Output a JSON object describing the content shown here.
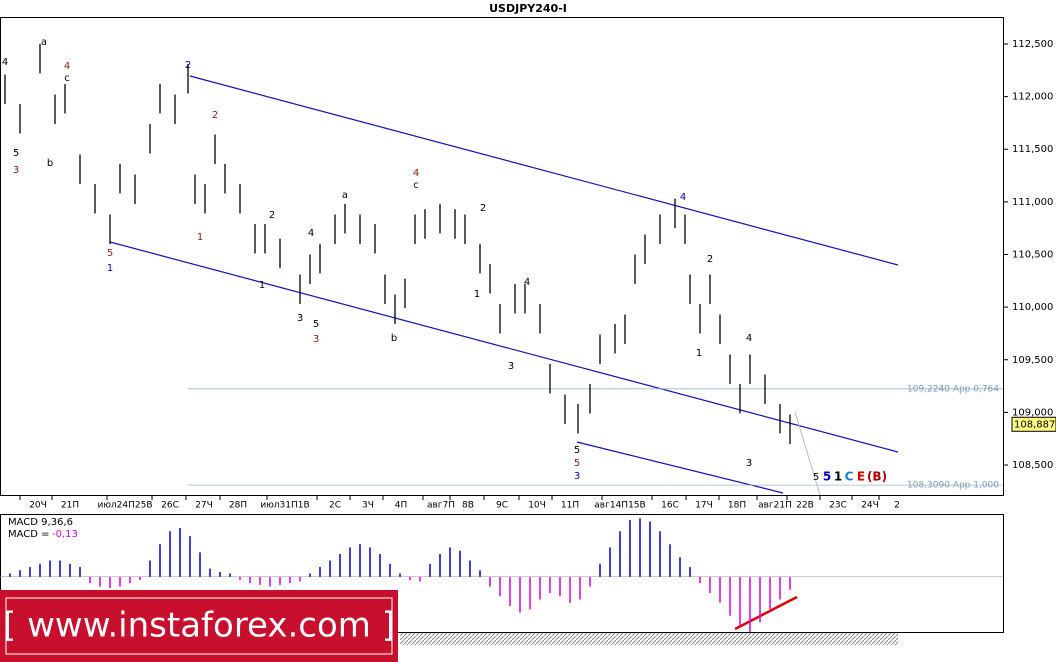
{
  "chart_data": {
    "type": "ohlc",
    "title": "USDJPY240-I",
    "ylim": [
      108.215,
      112.747
    ],
    "yticks": [
      {
        "value": 108.5,
        "label": "108,500"
      },
      {
        "value": 109,
        "label": "109,000"
      },
      {
        "value": 109.5,
        "label": "109,500"
      },
      {
        "value": 110,
        "label": "110,000"
      },
      {
        "value": 110.5,
        "label": "110,500"
      },
      {
        "value": 111,
        "label": "111,000"
      },
      {
        "value": 111.5,
        "label": "111,500"
      },
      {
        "value": 112,
        "label": "112,000"
      },
      {
        "value": 112.5,
        "label": "112,500"
      }
    ],
    "categories": [
      "20Ч",
      "21П",
      "июл24П25В",
      "26С",
      "27Ч",
      "28П",
      "июл31П1В",
      "2С",
      "3Ч",
      "4П",
      "авг7П",
      "8В",
      "9С",
      "10Ч",
      "11П",
      "авг14П15В",
      "16С",
      "17Ч",
      "18П",
      "авг21П",
      "22В",
      "23С",
      "24Ч",
      "2"
    ],
    "high": [
      112.21,
      111.93,
      112.5,
      112.02,
      112.12,
      111.45,
      111.17,
      110.88,
      111.36,
      111.26,
      111.74,
      112.12,
      112.02,
      112.31,
      111.26,
      111.17,
      111.64,
      111.36,
      111.17,
      110.79,
      110.79,
      110.65,
      110.31,
      110.5,
      110.6,
      110.88,
      110.98,
      110.88,
      110.79,
      110.31,
      110.12,
      110.27,
      110.88,
      110.93,
      110.98,
      110.93,
      110.88,
      110.6,
      110.41,
      110.03,
      110.22,
      110.22,
      110.03,
      109.46,
      109.17,
      109.08,
      109.27,
      109.74,
      109.84,
      109.93,
      110.5,
      110.69,
      110.88,
      111.03,
      110.88,
      110.31,
      110.03,
      110.31,
      109.93,
      109.55,
      109.27,
      109.55,
      109.36,
      109.08,
      108.98
    ],
    "low": [
      111.93,
      111.65,
      112.22,
      111.74,
      111.84,
      111.17,
      110.89,
      110.6,
      111.08,
      110.98,
      111.46,
      111.84,
      111.74,
      112.03,
      110.98,
      110.89,
      111.36,
      111.08,
      110.89,
      110.51,
      110.51,
      110.37,
      110.03,
      110.22,
      110.32,
      110.6,
      110.7,
      110.6,
      110.51,
      110.03,
      109.84,
      109.99,
      110.6,
      110.65,
      110.7,
      110.65,
      110.6,
      110.32,
      110.13,
      109.75,
      109.94,
      109.94,
      109.75,
      109.18,
      108.89,
      108.8,
      108.99,
      109.46,
      109.56,
      109.65,
      110.22,
      110.41,
      110.6,
      110.75,
      110.6,
      110.03,
      109.75,
      110.03,
      109.65,
      109.27,
      108.99,
      109.27,
      109.08,
      108.8,
      108.7
    ],
    "color": "#000000",
    "current": {
      "value": 108.887,
      "label": "108,887"
    },
    "levels": [
      {
        "value": 109.224,
        "label": "109,2240 App 0,764"
      },
      {
        "value": 108.309,
        "label": "108,3090 App 1,000"
      }
    ],
    "waves": [
      {
        "text": "4",
        "color": "#000000"
      },
      {
        "text": "a",
        "color": "#000000"
      },
      {
        "text": "4",
        "color": "#8b1a1a"
      },
      {
        "text": "c",
        "color": "#000000"
      },
      {
        "text": "5",
        "color": "#000000"
      },
      {
        "text": "3",
        "color": "#8b1a1a"
      },
      {
        "text": "b",
        "color": "#000000"
      },
      {
        "text": "2",
        "color": "#0000cc"
      },
      {
        "text": "2",
        "color": "#8b1a1a"
      },
      {
        "text": "5",
        "color": "#8b1a1a"
      },
      {
        "text": "1",
        "color": "#0000cc"
      },
      {
        "text": "1",
        "color": "#8b1a1a"
      },
      {
        "text": "2",
        "color": "#000000"
      },
      {
        "text": "1",
        "color": "#000000"
      },
      {
        "text": "4",
        "color": "#000000"
      },
      {
        "text": "3",
        "color": "#000000"
      },
      {
        "text": "5",
        "color": "#000000"
      },
      {
        "text": "3",
        "color": "#8b1a1a"
      },
      {
        "text": "a",
        "color": "#000000"
      },
      {
        "text": "4",
        "color": "#8b1a1a"
      },
      {
        "text": "c",
        "color": "#000000"
      },
      {
        "text": "b",
        "color": "#000000"
      },
      {
        "text": "2",
        "color": "#000000"
      },
      {
        "text": "1",
        "color": "#000000"
      },
      {
        "text": "4",
        "color": "#000000"
      },
      {
        "text": "3",
        "color": "#000000"
      },
      {
        "text": "5",
        "color": "#000000"
      },
      {
        "text": "5",
        "color": "#8b1a1a"
      },
      {
        "text": "3",
        "color": "#0000cc"
      },
      {
        "text": "4",
        "color": "#0000cc"
      },
      {
        "text": "2",
        "color": "#000000"
      },
      {
        "text": "1",
        "color": "#000000"
      },
      {
        "text": "4",
        "color": "#000000"
      },
      {
        "text": "3",
        "color": "#000000"
      },
      {
        "text": "5",
        "color": "#000000"
      },
      {
        "text": "5",
        "color": "#0000cc"
      },
      {
        "text": "1",
        "color": "#000000"
      },
      {
        "text": "C",
        "color": "#1e7fd0"
      },
      {
        "text": "E",
        "color": "#e00000"
      },
      {
        "text": "(B)",
        "color": "#b00000"
      }
    ],
    "macd": {
      "title": "MACD 9,36,6",
      "label": "MACD =",
      "current": {
        "value": -0.13,
        "label": "-0,13"
      },
      "ylim": [
        -0.34,
        0.38
      ],
      "positive_color": "#0000cc",
      "negative_color": "#e000e0",
      "values": [
        0.02,
        0.04,
        0.06,
        0.08,
        0.1,
        0.1,
        0.08,
        0.06,
        -0.04,
        -0.06,
        -0.07,
        -0.06,
        -0.04,
        -0.02,
        0.1,
        0.2,
        0.28,
        0.3,
        0.25,
        0.15,
        0.05,
        0.03,
        0.02,
        -0.02,
        -0.04,
        -0.05,
        -0.06,
        -0.05,
        -0.04,
        -0.03,
        0.02,
        0.06,
        0.1,
        0.14,
        0.18,
        0.2,
        0.18,
        0.14,
        0.08,
        0.02,
        -0.02,
        -0.03,
        0.08,
        0.14,
        0.18,
        0.16,
        0.1,
        0.04,
        -0.06,
        -0.12,
        -0.18,
        -0.22,
        -0.2,
        -0.14,
        -0.1,
        -0.12,
        -0.16,
        -0.14,
        -0.06,
        0.08,
        0.18,
        0.28,
        0.35,
        0.36,
        0.34,
        0.28,
        0.2,
        0.12,
        0.06,
        -0.04,
        -0.1,
        -0.16,
        -0.24,
        -0.3,
        -0.34,
        -0.28,
        -0.2,
        -0.14,
        -0.08
      ]
    },
    "watermark": "[ www.instaforex.com ]"
  }
}
